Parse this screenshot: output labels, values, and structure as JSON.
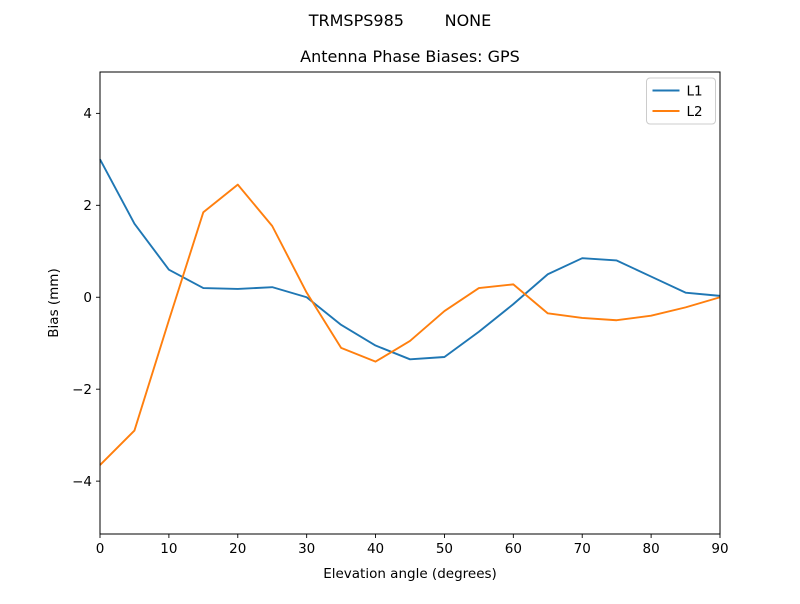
{
  "figure": {
    "background": "#ffffff",
    "text_color": "#000000"
  },
  "chart_data": {
    "type": "line",
    "suptitle": "TRMSPS985        NONE",
    "title": "Antenna Phase Biases: GPS",
    "xlabel": "Elevation angle (degrees)",
    "ylabel": "Bias (mm)",
    "xlim": [
      0,
      90
    ],
    "ylim": [
      -5.15,
      4.9
    ],
    "xticks": [
      0,
      10,
      20,
      30,
      40,
      50,
      60,
      70,
      80,
      90
    ],
    "yticks": [
      -4,
      -2,
      0,
      2,
      4
    ],
    "grid": false,
    "legend": {
      "position": "upper right",
      "entries": [
        "L1",
        "L2"
      ]
    },
    "x": [
      0,
      5,
      10,
      15,
      20,
      25,
      30,
      35,
      40,
      45,
      50,
      55,
      60,
      65,
      70,
      75,
      80,
      85,
      90
    ],
    "series": [
      {
        "name": "L1",
        "color": "#1f77b4",
        "values": [
          3.0,
          1.6,
          0.6,
          0.2,
          0.18,
          0.22,
          0.0,
          -0.6,
          -1.05,
          -1.35,
          -1.3,
          -0.75,
          -0.15,
          0.5,
          0.85,
          0.8,
          0.45,
          0.1,
          0.03
        ]
      },
      {
        "name": "L2",
        "color": "#ff7f0e",
        "values": [
          -3.65,
          -2.9,
          -0.5,
          1.85,
          2.45,
          1.55,
          0.1,
          -1.1,
          -1.4,
          -0.95,
          -0.3,
          0.2,
          0.28,
          -0.35,
          -0.45,
          -0.5,
          -0.4,
          -0.22,
          0.0
        ]
      }
    ]
  }
}
